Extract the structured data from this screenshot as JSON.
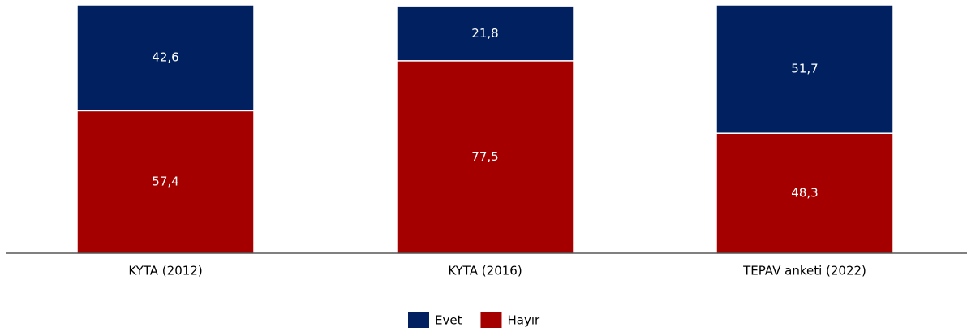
{
  "chart_data": {
    "type": "stacked_bar",
    "categories": [
      "KYTA (2012)",
      "KYTA (2016)",
      "TEPAV anketi (2022)"
    ],
    "series": [
      {
        "name": "Evet",
        "color": "#002060",
        "values": [
          42.6,
          21.8,
          51.7
        ],
        "value_labels": [
          "42,6",
          "21,8",
          "51,7"
        ]
      },
      {
        "name": "Hayır",
        "color": "#a50000",
        "values": [
          57.4,
          77.5,
          48.3
        ],
        "value_labels": [
          "57,4",
          "77,5",
          "48,3"
        ]
      }
    ],
    "ylim": [
      0,
      100
    ],
    "legend": "bottom"
  }
}
